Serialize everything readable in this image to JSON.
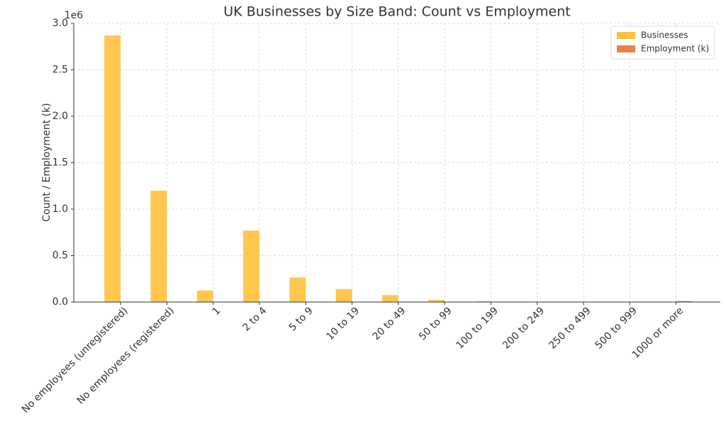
{
  "chart_data": {
    "type": "bar",
    "title": "UK Businesses by Size Band: Count vs Employment",
    "y_label": "Count / Employment (k)",
    "y_offset_label": "1e6",
    "categories": [
      "No employees (unregistered)",
      "No employees (registered)",
      "1",
      "2 to 4",
      "5 to 9",
      "10 to 19",
      "20 to 49",
      "50 to 99",
      "100 to 199",
      "200 to 249",
      "250 to 499",
      "500 to 999",
      "1000 or more"
    ],
    "series": [
      {
        "name": "Businesses",
        "color": "#ffc13b",
        "values": [
          2870000,
          1200000,
          125000,
          770000,
          265000,
          140000,
          75000,
          25000,
          10000,
          2000,
          4000,
          2000,
          3000
        ]
      },
      {
        "name": "Employment (k)",
        "color": "#e8804a",
        "values": [
          4300,
          2700,
          1200,
          2400,
          1800,
          1900,
          2300,
          1700,
          1400,
          500,
          1400,
          1300,
          10500
        ]
      }
    ],
    "ylim": [
      0,
      3000000
    ],
    "yticks": [
      {
        "value": 0,
        "label": "0.0"
      },
      {
        "value": 500000,
        "label": "0.5"
      },
      {
        "value": 1000000,
        "label": "1.0"
      },
      {
        "value": 1500000,
        "label": "1.5"
      },
      {
        "value": 2000000,
        "label": "2.0"
      },
      {
        "value": 2500000,
        "label": "2.5"
      },
      {
        "value": 3000000,
        "label": "3.0"
      }
    ],
    "grid": true,
    "legend": "upper right"
  }
}
